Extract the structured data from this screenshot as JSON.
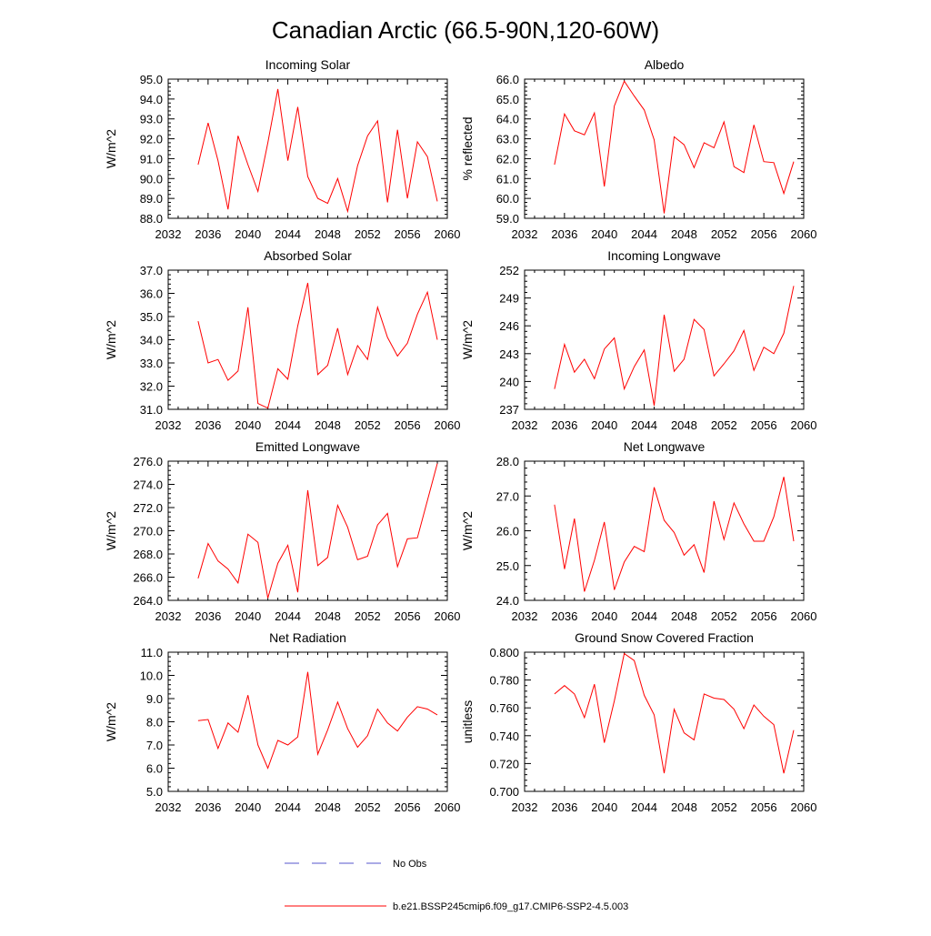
{
  "title": "Canadian Arctic (66.5-90N,120-60W)",
  "legend": [
    {
      "label": "No Obs",
      "style": "dashed",
      "color": "#5555cc"
    },
    {
      "label": "b.e21.BSSP245cmip6.f09_g17.CMIP6-SSP2-4.5.003",
      "style": "solid",
      "color": "#ff0000"
    }
  ],
  "chart_data": [
    {
      "type": "line",
      "title": "Incoming Solar",
      "ylabel": "W/m^2",
      "xlim": [
        2032,
        2060
      ],
      "ylim": [
        88.0,
        95.0
      ],
      "xticks": [
        2032,
        2036,
        2040,
        2044,
        2048,
        2052,
        2056,
        2060
      ],
      "yticks": [
        "88.0",
        "89.0",
        "90.0",
        "91.0",
        "92.0",
        "93.0",
        "94.0",
        "95.0"
      ],
      "series": [
        {
          "name": "b.e21.BSSP245cmip6.f09_g17.CMIP6-SSP2-4.5.003",
          "color": "#ff0000",
          "x": [
            2035,
            2036,
            2037,
            2038,
            2039,
            2040,
            2041,
            2042,
            2043,
            2044,
            2045,
            2046,
            2047,
            2048,
            2049,
            2050,
            2051,
            2052,
            2053,
            2054,
            2055,
            2056,
            2057,
            2058,
            2059
          ],
          "y": [
            90.7,
            92.8,
            90.9,
            88.45,
            92.15,
            90.7,
            89.35,
            91.8,
            94.5,
            90.9,
            93.6,
            90.1,
            89.0,
            88.75,
            90.0,
            88.35,
            90.65,
            92.15,
            92.9,
            88.8,
            92.45,
            89.0,
            91.85,
            91.1,
            88.85
          ]
        }
      ]
    },
    {
      "type": "line",
      "title": "Albedo",
      "ylabel": "% reflected",
      "xlim": [
        2032,
        2060
      ],
      "ylim": [
        59.0,
        66.0
      ],
      "xticks": [
        2032,
        2036,
        2040,
        2044,
        2048,
        2052,
        2056,
        2060
      ],
      "yticks": [
        "59.0",
        "60.0",
        "61.0",
        "62.0",
        "63.0",
        "64.0",
        "65.0",
        "66.0"
      ],
      "series": [
        {
          "name": "b.e21.BSSP245cmip6.f09_g17.CMIP6-SSP2-4.5.003",
          "color": "#ff0000",
          "x": [
            2035,
            2036,
            2037,
            2038,
            2039,
            2040,
            2041,
            2042,
            2043,
            2044,
            2045,
            2046,
            2047,
            2048,
            2049,
            2050,
            2051,
            2052,
            2053,
            2054,
            2055,
            2056,
            2057,
            2058,
            2059
          ],
          "y": [
            61.7,
            64.25,
            63.4,
            63.2,
            64.3,
            60.6,
            64.65,
            65.9,
            65.15,
            64.45,
            62.95,
            59.25,
            63.1,
            62.7,
            61.55,
            62.8,
            62.55,
            63.85,
            61.6,
            61.3,
            63.7,
            61.85,
            61.8,
            60.25,
            61.85
          ]
        }
      ]
    },
    {
      "type": "line",
      "title": "Absorbed Solar",
      "ylabel": "W/m^2",
      "xlim": [
        2032,
        2060
      ],
      "ylim": [
        31.0,
        37.0
      ],
      "xticks": [
        2032,
        2036,
        2040,
        2044,
        2048,
        2052,
        2056,
        2060
      ],
      "yticks": [
        "31.0",
        "32.0",
        "33.0",
        "34.0",
        "35.0",
        "36.0",
        "37.0"
      ],
      "series": [
        {
          "name": "b.e21.BSSP245cmip6.f09_g17.CMIP6-SSP2-4.5.003",
          "color": "#ff0000",
          "x": [
            2035,
            2036,
            2037,
            2038,
            2039,
            2040,
            2041,
            2042,
            2043,
            2044,
            2045,
            2046,
            2047,
            2048,
            2049,
            2050,
            2051,
            2052,
            2053,
            2054,
            2055,
            2056,
            2057,
            2058,
            2059
          ],
          "y": [
            34.8,
            33.0,
            33.15,
            32.25,
            32.65,
            35.4,
            31.25,
            31.05,
            32.75,
            32.3,
            34.6,
            36.45,
            32.5,
            32.9,
            34.5,
            32.5,
            33.75,
            33.15,
            35.4,
            34.1,
            33.3,
            33.85,
            35.1,
            36.05,
            34.0
          ]
        }
      ]
    },
    {
      "type": "line",
      "title": "Incoming Longwave",
      "ylabel": "W/m^2",
      "xlim": [
        2032,
        2060
      ],
      "ylim": [
        237,
        252
      ],
      "xticks": [
        2032,
        2036,
        2040,
        2044,
        2048,
        2052,
        2056,
        2060
      ],
      "yticks": [
        "237",
        "240",
        "243",
        "246",
        "249",
        "252"
      ],
      "series": [
        {
          "name": "b.e21.BSSP245cmip6.f09_g17.CMIP6-SSP2-4.5.003",
          "color": "#ff0000",
          "x": [
            2035,
            2036,
            2037,
            2038,
            2039,
            2040,
            2041,
            2042,
            2043,
            2044,
            2045,
            2046,
            2047,
            2048,
            2049,
            2050,
            2051,
            2052,
            2053,
            2054,
            2055,
            2056,
            2057,
            2058,
            2059
          ],
          "y": [
            239.2,
            244.0,
            241.0,
            242.4,
            240.3,
            243.5,
            244.7,
            239.2,
            241.6,
            243.4,
            237.4,
            247.2,
            241.1,
            242.4,
            246.7,
            245.6,
            240.6,
            241.9,
            243.3,
            245.5,
            241.2,
            243.7,
            243.0,
            245.2,
            250.3
          ]
        }
      ]
    },
    {
      "type": "line",
      "title": "Emitted Longwave",
      "ylabel": "W/m^2",
      "xlim": [
        2032,
        2060
      ],
      "ylim": [
        264.0,
        276.0
      ],
      "xticks": [
        2032,
        2036,
        2040,
        2044,
        2048,
        2052,
        2056,
        2060
      ],
      "yticks": [
        "264.0",
        "266.0",
        "268.0",
        "270.0",
        "272.0",
        "274.0",
        "276.0"
      ],
      "series": [
        {
          "name": "b.e21.BSSP245cmip6.f09_g17.CMIP6-SSP2-4.5.003",
          "color": "#ff0000",
          "x": [
            2035,
            2036,
            2037,
            2038,
            2039,
            2040,
            2041,
            2042,
            2043,
            2044,
            2045,
            2046,
            2047,
            2048,
            2049,
            2050,
            2051,
            2052,
            2053,
            2054,
            2055,
            2056,
            2057,
            2058,
            2059
          ],
          "y": [
            265.9,
            268.9,
            267.4,
            266.7,
            265.5,
            269.7,
            269.0,
            264.2,
            267.2,
            268.75,
            264.7,
            273.5,
            267.0,
            267.7,
            272.2,
            270.3,
            267.5,
            267.8,
            270.5,
            271.5,
            266.9,
            269.3,
            269.4,
            272.6,
            275.8
          ]
        }
      ]
    },
    {
      "type": "line",
      "title": "Net Longwave",
      "ylabel": "W/m^2",
      "xlim": [
        2032,
        2060
      ],
      "ylim": [
        24.0,
        28.0
      ],
      "xticks": [
        2032,
        2036,
        2040,
        2044,
        2048,
        2052,
        2056,
        2060
      ],
      "yticks": [
        "24.0",
        "25.0",
        "26.0",
        "27.0",
        "28.0"
      ],
      "series": [
        {
          "name": "b.e21.BSSP245cmip6.f09_g17.CMIP6-SSP2-4.5.003",
          "color": "#ff0000",
          "x": [
            2035,
            2036,
            2037,
            2038,
            2039,
            2040,
            2041,
            2042,
            2043,
            2044,
            2045,
            2046,
            2047,
            2048,
            2049,
            2050,
            2051,
            2052,
            2053,
            2054,
            2055,
            2056,
            2057,
            2058,
            2059
          ],
          "y": [
            26.75,
            24.9,
            26.35,
            24.25,
            25.15,
            26.25,
            24.3,
            25.1,
            25.55,
            25.4,
            27.25,
            26.3,
            25.95,
            25.3,
            25.6,
            24.8,
            26.85,
            25.75,
            26.8,
            26.2,
            25.7,
            25.7,
            26.4,
            27.55,
            25.7
          ]
        }
      ]
    },
    {
      "type": "line",
      "title": "Net Radiation",
      "ylabel": "W/m^2",
      "xlim": [
        2032,
        2060
      ],
      "ylim": [
        5.0,
        11.0
      ],
      "xticks": [
        2032,
        2036,
        2040,
        2044,
        2048,
        2052,
        2056,
        2060
      ],
      "yticks": [
        "5.0",
        "6.0",
        "7.0",
        "8.0",
        "9.0",
        "10.0",
        "11.0"
      ],
      "series": [
        {
          "name": "b.e21.BSSP245cmip6.f09_g17.CMIP6-SSP2-4.5.003",
          "color": "#ff0000",
          "x": [
            2035,
            2036,
            2037,
            2038,
            2039,
            2040,
            2041,
            2042,
            2043,
            2044,
            2045,
            2046,
            2047,
            2048,
            2049,
            2050,
            2051,
            2052,
            2053,
            2054,
            2055,
            2056,
            2057,
            2058,
            2059
          ],
          "y": [
            8.05,
            8.1,
            6.85,
            7.95,
            7.55,
            9.15,
            7.0,
            6.0,
            7.2,
            7.0,
            7.35,
            10.15,
            6.6,
            7.65,
            8.85,
            7.7,
            6.9,
            7.4,
            8.55,
            7.95,
            7.6,
            8.2,
            8.65,
            8.55,
            8.3
          ]
        }
      ]
    },
    {
      "type": "line",
      "title": "Ground Snow Covered Fraction",
      "ylabel": "unitless",
      "xlim": [
        2032,
        2060
      ],
      "ylim": [
        0.7,
        0.8
      ],
      "xticks": [
        2032,
        2036,
        2040,
        2044,
        2048,
        2052,
        2056,
        2060
      ],
      "yticks": [
        "0.700",
        "0.720",
        "0.740",
        "0.760",
        "0.780",
        "0.800"
      ],
      "series": [
        {
          "name": "b.e21.BSSP245cmip6.f09_g17.CMIP6-SSP2-4.5.003",
          "color": "#ff0000",
          "x": [
            2035,
            2036,
            2037,
            2038,
            2039,
            2040,
            2041,
            2042,
            2043,
            2044,
            2045,
            2046,
            2047,
            2048,
            2049,
            2050,
            2051,
            2052,
            2053,
            2054,
            2055,
            2056,
            2057,
            2058,
            2059
          ],
          "y": [
            0.77,
            0.776,
            0.77,
            0.753,
            0.777,
            0.735,
            0.765,
            0.799,
            0.794,
            0.769,
            0.755,
            0.713,
            0.759,
            0.742,
            0.737,
            0.77,
            0.767,
            0.766,
            0.759,
            0.745,
            0.762,
            0.754,
            0.748,
            0.713,
            0.744
          ]
        }
      ]
    }
  ]
}
